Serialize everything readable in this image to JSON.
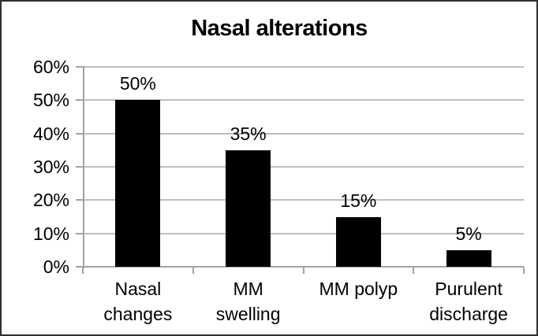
{
  "chart_data": {
    "type": "bar",
    "title": "Nasal alterations",
    "categories": [
      "Nasal changes",
      "MM swelling",
      "MM polyp",
      "Purulent discharge"
    ],
    "category_lines": [
      [
        "Nasal",
        "changes"
      ],
      [
        "MM",
        "swelling"
      ],
      [
        "MM polyp"
      ],
      [
        "Purulent",
        "discharge"
      ]
    ],
    "values": [
      50,
      35,
      15,
      5
    ],
    "data_labels": [
      "50%",
      "35%",
      "15%",
      "5%"
    ],
    "y_tick_labels": [
      "0%",
      "10%",
      "20%",
      "30%",
      "40%",
      "50%",
      "60%"
    ],
    "ylim": [
      0,
      60
    ],
    "y_step": 10,
    "xlabel": "",
    "ylabel": "",
    "grid": true,
    "legend": false,
    "colors": {
      "bar": "#000000",
      "gridline": "#bdbdbd",
      "axis": "#a3a3a3",
      "text": "#000000",
      "background": "#ffffff",
      "border": "#2e2e2e"
    }
  }
}
